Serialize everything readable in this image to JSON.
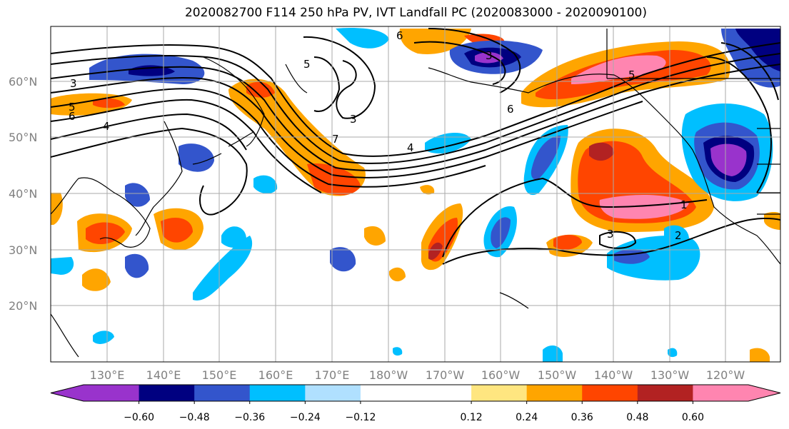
{
  "title": "2020082700 F114 250 hPa PV, IVT Landfall PC (2020083000 - 2020090100)",
  "lat_labels": [
    "60°N",
    "50°N",
    "40°N",
    "30°N",
    "20°N"
  ],
  "lon_labels": [
    "130°E",
    "140°E",
    "150°E",
    "160°E",
    "170°E",
    "180°W",
    "170°W",
    "160°W",
    "150°W",
    "140°W",
    "130°W",
    "120°W"
  ],
  "colorbar": {
    "colors": [
      "#9933cc",
      "#000080",
      "#3355cc",
      "#00bfff",
      "#b0e0ff",
      "#ffffff",
      "#ffffff",
      "#ffe680",
      "#ffa500",
      "#ff4500",
      "#b22222",
      "#ff85b0"
    ],
    "labels": [
      "−0.60",
      "−0.48",
      "−0.36",
      "−0.24",
      "−0.12",
      "0.12",
      "0.24",
      "0.36",
      "0.48",
      "0.60"
    ]
  },
  "contour_labels": [
    "3",
    "5",
    "6",
    "4",
    "3",
    "7",
    "5",
    "4",
    "6",
    "3",
    "5",
    "6",
    "1",
    "2",
    "3"
  ]
}
